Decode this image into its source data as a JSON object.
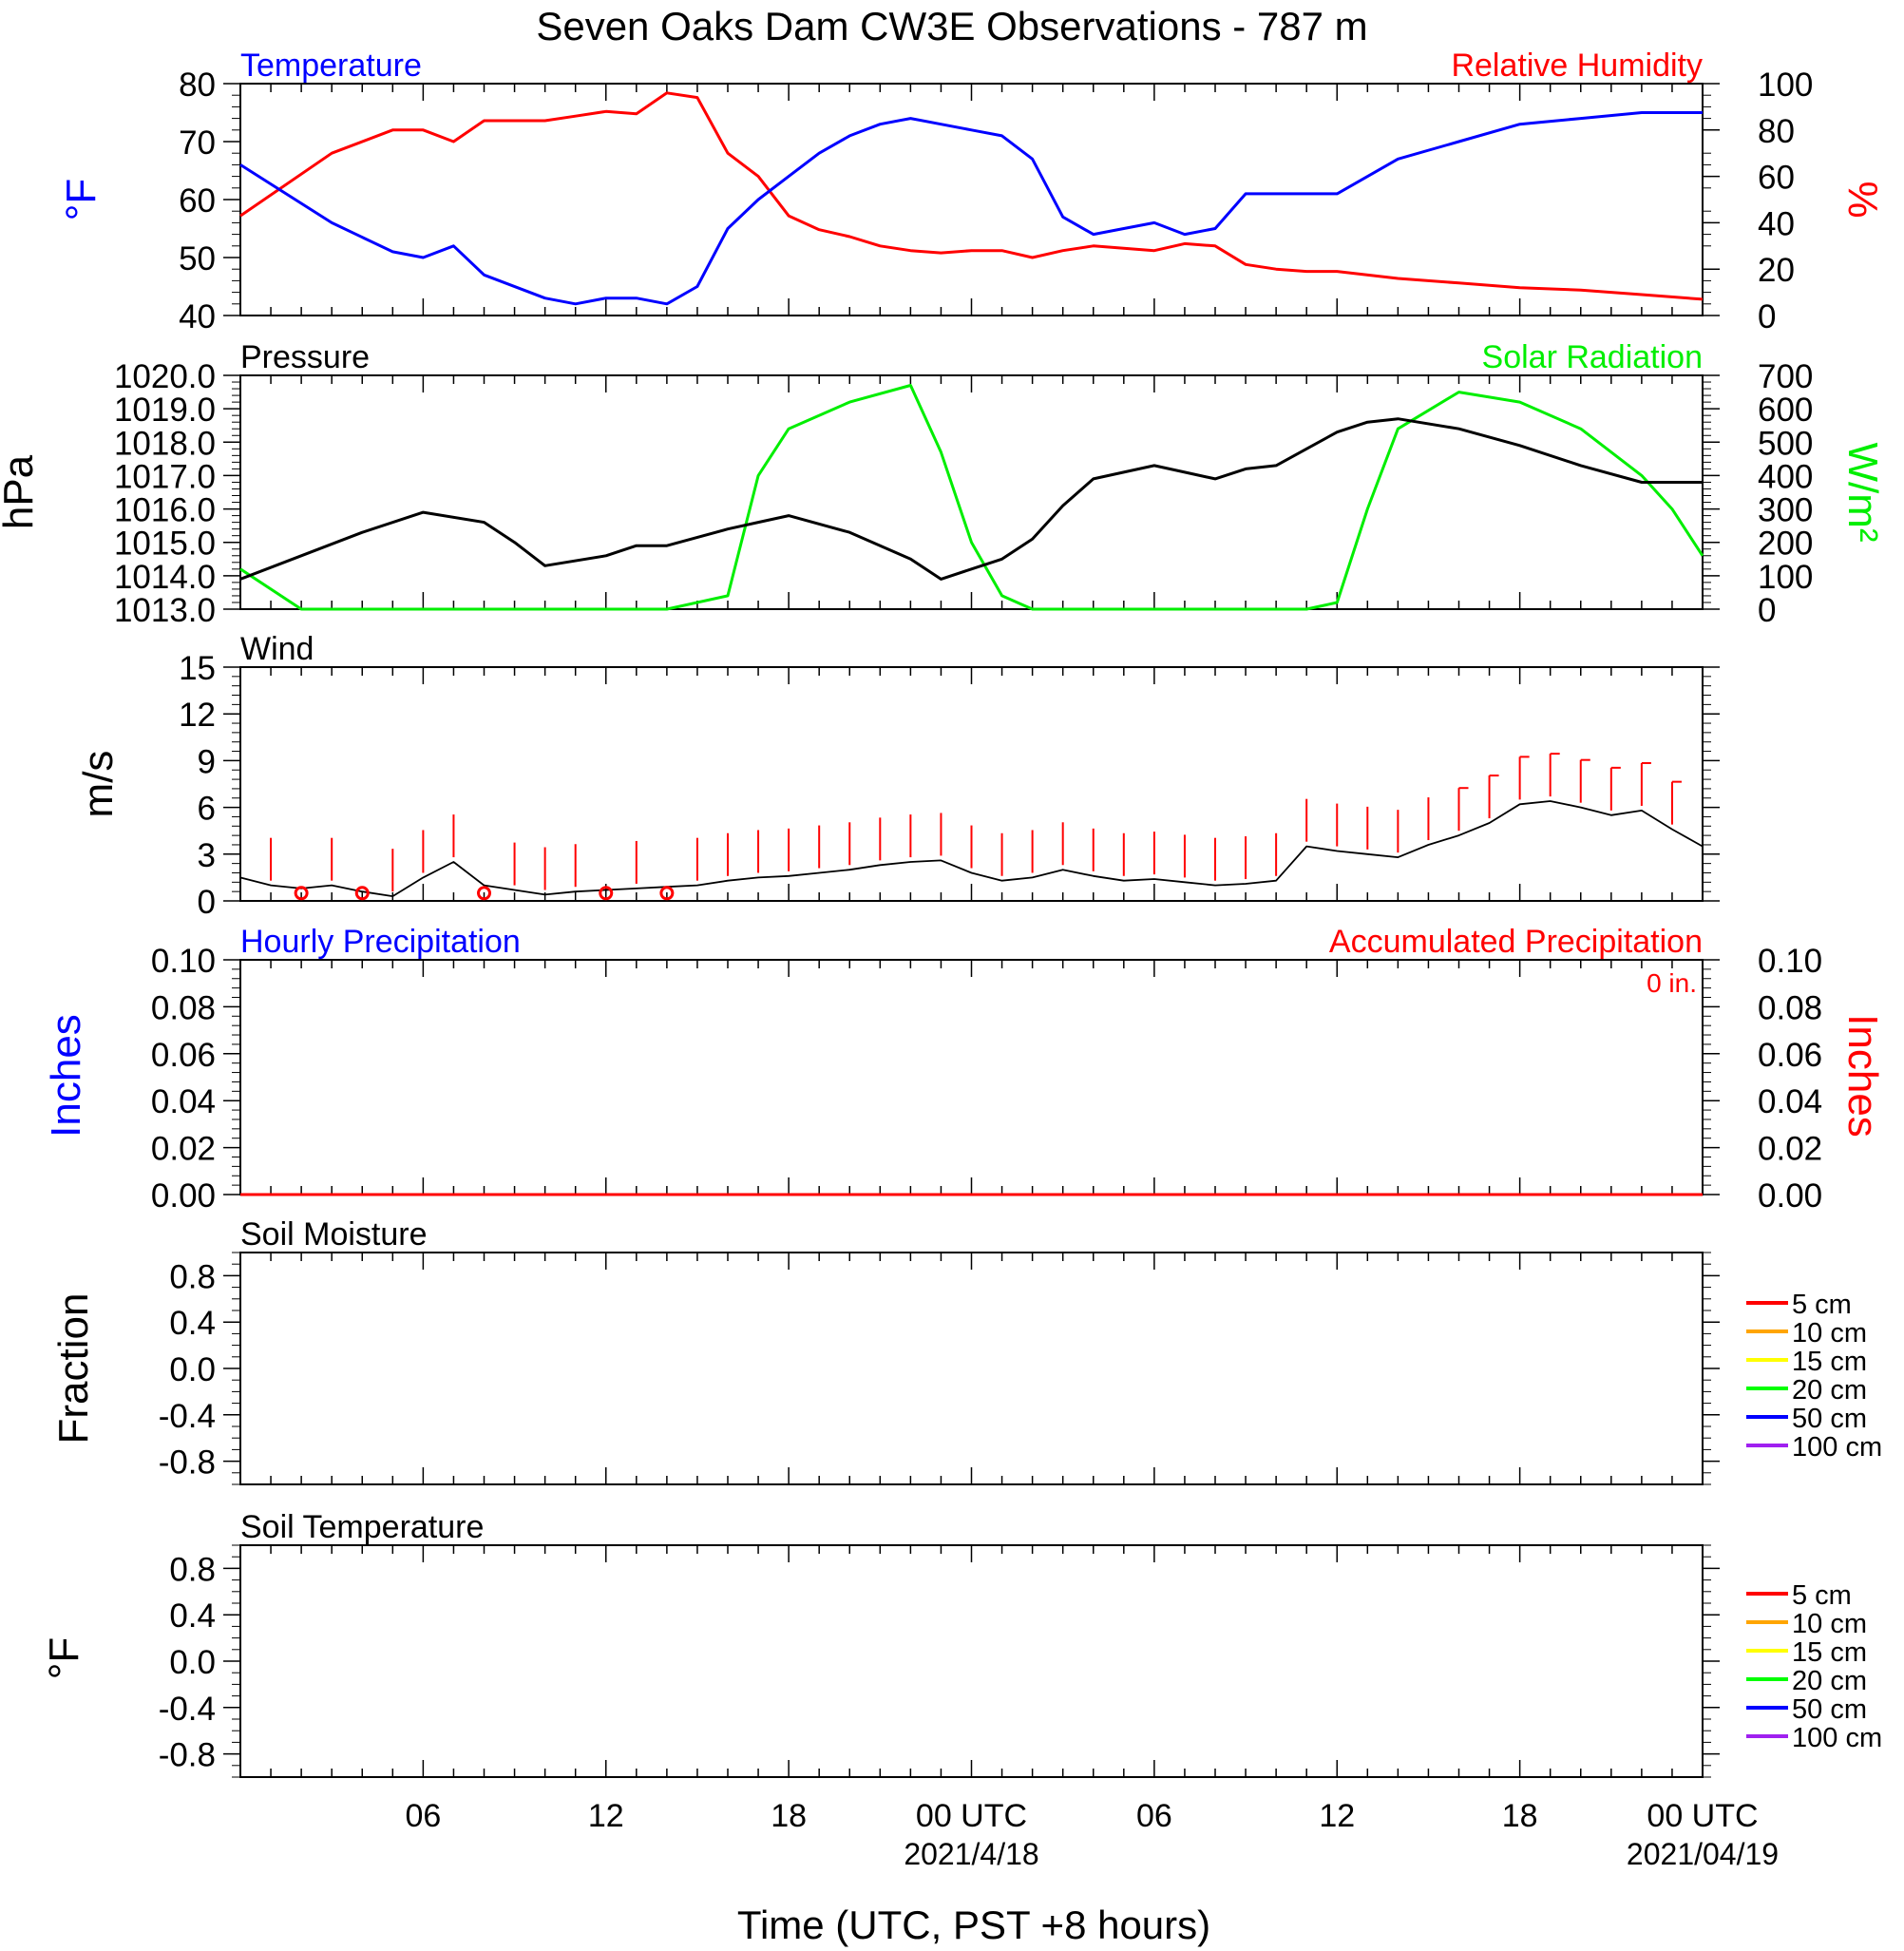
{
  "title": "Seven Oaks Dam CW3E Observations - 787 m",
  "xlabel": "Time (UTC, PST +8 hours)",
  "x_ticks": [
    "06",
    "12",
    "18",
    "00 UTC",
    "06",
    "12",
    "18",
    "00 UTC"
  ],
  "x_dates": [
    "2021/4/18",
    "2021/04/19"
  ],
  "accum_total_label": "0 in.",
  "colors": {
    "temperature": "#0000ff",
    "humidity": "#ff0000",
    "pressure": "#000000",
    "solar": "#00ee00",
    "wind": "#000000",
    "barb": "#ff0000"
  },
  "chart_data": [
    {
      "panel": "temperature_rh",
      "type": "line",
      "title": "Temperature",
      "title_right": "Relative Humidity",
      "ylabel": "°F",
      "ylabel_right": "%",
      "ylim": [
        40,
        80
      ],
      "ylim_right": [
        0,
        100
      ],
      "yticks": [
        "80",
        "70",
        "60",
        "50",
        "40"
      ],
      "yticks_right": [
        "100",
        "80",
        "60",
        "40",
        "20",
        "0"
      ],
      "x_hours": [
        0,
        3,
        5,
        6,
        7,
        8,
        10,
        11,
        12,
        13,
        14,
        15,
        16,
        17,
        18,
        19,
        20,
        21,
        22,
        23,
        24,
        25,
        26,
        27,
        28,
        29,
        30,
        31,
        32,
        33,
        34,
        35,
        36,
        38,
        40,
        42,
        44,
        46,
        48
      ],
      "series": [
        {
          "name": "Temperature",
          "axis": "left",
          "values": [
            66,
            56,
            51,
            50,
            52,
            47,
            43,
            42,
            43,
            43,
            42,
            45,
            55,
            60,
            64,
            68,
            71,
            73,
            74,
            73,
            72,
            71,
            67,
            57,
            54,
            55,
            56,
            54,
            55,
            61,
            61,
            61,
            61,
            67,
            70,
            73,
            74,
            75,
            75
          ]
        },
        {
          "name": "Relative Humidity",
          "axis": "right",
          "values": [
            43,
            70,
            80,
            80,
            75,
            84,
            84,
            86,
            88,
            87,
            96,
            94,
            70,
            60,
            43,
            37,
            34,
            30,
            28,
            27,
            28,
            28,
            25,
            28,
            30,
            29,
            28,
            31,
            30,
            22,
            20,
            19,
            19,
            16,
            14,
            12,
            11,
            9,
            7
          ]
        }
      ]
    },
    {
      "panel": "pressure_solar",
      "type": "line",
      "title": "Pressure",
      "title_right": "Solar Radiation",
      "ylabel": "hPa",
      "ylabel_right": "W/m²",
      "ylim": [
        1013.0,
        1020.0
      ],
      "ylim_right": [
        0,
        700
      ],
      "yticks": [
        "1020.0",
        "1019.0",
        "1018.0",
        "1017.0",
        "1016.0",
        "1015.0",
        "1014.0",
        "1013.0"
      ],
      "yticks_right": [
        "700",
        "600",
        "500",
        "400",
        "300",
        "200",
        "100",
        "0"
      ],
      "x_hours": [
        0,
        2,
        4,
        6,
        8,
        9,
        10,
        12,
        13,
        14,
        16,
        17,
        18,
        20,
        22,
        23,
        24,
        25,
        26,
        27,
        28,
        29,
        30,
        31,
        32,
        33,
        34,
        35,
        36,
        37,
        38,
        40,
        42,
        44,
        46,
        47,
        48
      ],
      "series": [
        {
          "name": "Pressure",
          "axis": "left",
          "values": [
            1013.9,
            1014.6,
            1015.3,
            1015.9,
            1015.6,
            1015.0,
            1014.3,
            1014.6,
            1014.9,
            1014.9,
            1015.4,
            1015.6,
            1015.8,
            1015.3,
            1014.5,
            1013.9,
            1014.2,
            1014.5,
            1015.1,
            1016.1,
            1016.9,
            1017.1,
            1017.3,
            1017.1,
            1016.9,
            1017.2,
            1017.3,
            1017.8,
            1018.3,
            1018.6,
            1018.7,
            1018.4,
            1017.9,
            1017.3,
            1016.8,
            1016.8,
            1016.8
          ]
        },
        {
          "name": "Solar Radiation",
          "axis": "right",
          "values": [
            120,
            0,
            0,
            0,
            0,
            0,
            0,
            0,
            0,
            0,
            40,
            400,
            540,
            620,
            670,
            470,
            200,
            40,
            0,
            0,
            0,
            0,
            0,
            0,
            0,
            0,
            0,
            0,
            20,
            300,
            540,
            650,
            620,
            540,
            400,
            300,
            160
          ]
        }
      ]
    },
    {
      "panel": "wind",
      "type": "line",
      "title": "Wind",
      "ylabel": "m/s",
      "ylim": [
        0,
        15
      ],
      "yticks": [
        "15",
        "12",
        "9",
        "6",
        "3",
        "0"
      ],
      "x_hours": [
        0,
        1,
        2,
        3,
        4,
        5,
        6,
        7,
        8,
        9,
        10,
        11,
        12,
        13,
        14,
        15,
        16,
        17,
        18,
        19,
        20,
        21,
        22,
        23,
        24,
        25,
        26,
        27,
        28,
        29,
        30,
        31,
        32,
        33,
        34,
        35,
        36,
        37,
        38,
        39,
        40,
        41,
        42,
        43,
        44,
        45,
        46,
        47,
        48
      ],
      "series": [
        {
          "name": "Wind",
          "values": [
            1.5,
            1.0,
            0.8,
            1.0,
            0.6,
            0.3,
            1.5,
            2.5,
            1.0,
            0.7,
            0.4,
            0.6,
            0.7,
            0.8,
            0.9,
            1.0,
            1.3,
            1.5,
            1.6,
            1.8,
            2.0,
            2.3,
            2.5,
            2.6,
            1.8,
            1.3,
            1.5,
            2.0,
            1.6,
            1.3,
            1.4,
            1.2,
            1.0,
            1.1,
            1.3,
            3.5,
            3.2,
            3.0,
            2.8,
            3.6,
            4.2,
            5.0,
            6.2,
            6.4,
            6.0,
            5.5,
            5.8,
            4.6,
            3.5
          ]
        }
      ],
      "barb_hours": [
        1,
        2,
        3,
        4,
        5,
        6,
        7,
        8,
        9,
        10,
        11,
        12,
        13,
        14,
        15,
        16,
        17,
        18,
        19,
        20,
        21,
        22,
        23,
        24,
        25,
        26,
        27,
        28,
        29,
        30,
        31,
        32,
        33,
        34,
        35,
        36,
        37,
        38,
        39,
        40,
        41,
        42,
        43,
        44,
        45,
        46,
        47
      ],
      "calm_hours": [
        2,
        4,
        8,
        12,
        14
      ]
    },
    {
      "panel": "precipitation",
      "type": "line",
      "title": "Hourly Precipitation",
      "title_right": "Accumulated Precipitation",
      "ylabel": "Inches",
      "ylabel_right": "Inches",
      "ylim": [
        0,
        0.1
      ],
      "ylim_right": [
        0,
        0.1
      ],
      "yticks": [
        "0.10",
        "0.08",
        "0.06",
        "0.04",
        "0.02",
        "0.00"
      ],
      "yticks_right": [
        "0.10",
        "0.08",
        "0.06",
        "0.04",
        "0.02",
        "0.00"
      ],
      "series": [
        {
          "name": "Accumulated Precipitation",
          "values": [
            0,
            0
          ]
        }
      ]
    },
    {
      "panel": "soil_moisture",
      "type": "line",
      "title": "Soil Moisture",
      "ylabel": "Fraction",
      "ylim": [
        -1,
        1
      ],
      "yticks": [
        "0.8",
        "0.4",
        "0.0",
        "-0.4",
        "-0.8"
      ],
      "legend": [
        {
          "name": "5 cm",
          "color": "#ff0000"
        },
        {
          "name": "10 cm",
          "color": "#ffa500"
        },
        {
          "name": "15 cm",
          "color": "#ffff00"
        },
        {
          "name": "20 cm",
          "color": "#00ff00"
        },
        {
          "name": "50 cm",
          "color": "#0000ff"
        },
        {
          "name": "100 cm",
          "color": "#a020f0"
        }
      ]
    },
    {
      "panel": "soil_temperature",
      "type": "line",
      "title": "Soil Temperature",
      "ylabel": "°F",
      "ylim": [
        -1,
        1
      ],
      "yticks": [
        "0.8",
        "0.4",
        "0.0",
        "-0.4",
        "-0.8"
      ],
      "legend": [
        {
          "name": "5 cm",
          "color": "#ff0000"
        },
        {
          "name": "10 cm",
          "color": "#ffa500"
        },
        {
          "name": "15 cm",
          "color": "#ffff00"
        },
        {
          "name": "20 cm",
          "color": "#00ff00"
        },
        {
          "name": "50 cm",
          "color": "#0000ff"
        },
        {
          "name": "100 cm",
          "color": "#a020f0"
        }
      ]
    }
  ]
}
